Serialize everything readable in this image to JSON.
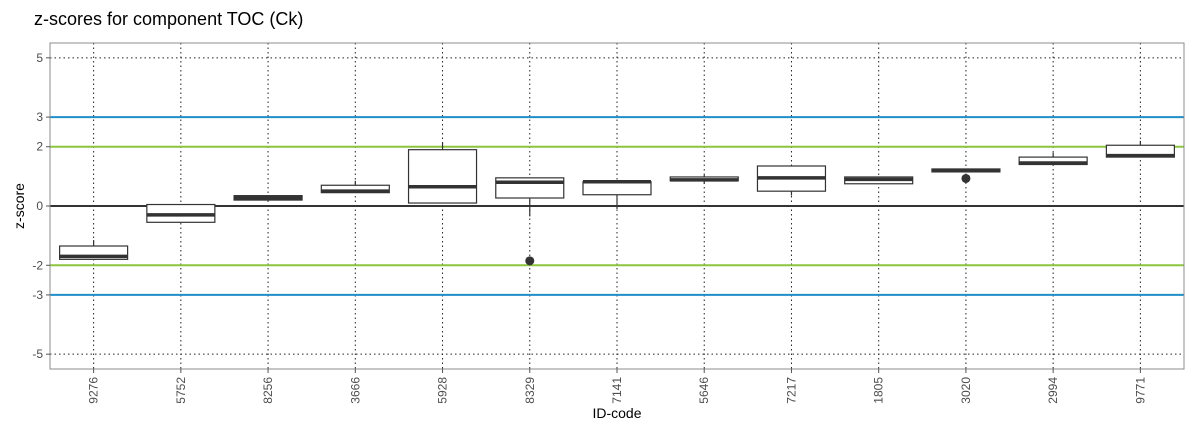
{
  "chart_data": {
    "type": "box",
    "title": "z-scores for component TOC (Ck)",
    "xlabel": "ID-code",
    "ylabel": "z-score",
    "ylim": [
      -5.5,
      5.5
    ],
    "y_ticks": [
      5,
      3,
      2,
      0,
      -2,
      -3,
      -5
    ],
    "y_tick_labels": [
      "5",
      "3",
      "2",
      "0",
      "-2",
      "-3",
      "-5"
    ],
    "grid": true,
    "reference_lines": [
      {
        "y": 3,
        "color": "#1f8fc8"
      },
      {
        "y": -3,
        "color": "#1f8fc8"
      },
      {
        "y": 2,
        "color": "#8cc63f"
      },
      {
        "y": -2,
        "color": "#8cc63f"
      },
      {
        "y": 0,
        "color": "#333333"
      }
    ],
    "categories": [
      "9276",
      "5752",
      "8256",
      "3666",
      "5928",
      "8329",
      "7141",
      "5646",
      "7217",
      "1805",
      "3020",
      "2994",
      "9771"
    ],
    "boxes": [
      {
        "whisker_low": -1.8,
        "q1": -1.8,
        "median": -1.7,
        "q3": -1.35,
        "whisker_high": -1.15,
        "outliers": []
      },
      {
        "whisker_low": -0.55,
        "q1": -0.55,
        "median": -0.3,
        "q3": 0.05,
        "whisker_high": 0.05,
        "outliers": []
      },
      {
        "whisker_low": 0.2,
        "q1": 0.2,
        "median": 0.28,
        "q3": 0.35,
        "whisker_high": 0.35,
        "outliers": []
      },
      {
        "whisker_low": 0.45,
        "q1": 0.45,
        "median": 0.5,
        "q3": 0.7,
        "whisker_high": 0.85,
        "outliers": []
      },
      {
        "whisker_low": 0.1,
        "q1": 0.1,
        "median": 0.65,
        "q3": 1.9,
        "whisker_high": 2.15,
        "outliers": []
      },
      {
        "whisker_low": -0.35,
        "q1": 0.27,
        "median": 0.8,
        "q3": 0.95,
        "whisker_high": 0.95,
        "outliers": [
          -1.85
        ]
      },
      {
        "whisker_low": -0.1,
        "q1": 0.38,
        "median": 0.82,
        "q3": 0.82,
        "whisker_high": 0.85,
        "outliers": []
      },
      {
        "whisker_low": 0.75,
        "q1": 0.85,
        "median": 0.88,
        "q3": 0.98,
        "whisker_high": 1.05,
        "outliers": []
      },
      {
        "whisker_low": 0.35,
        "q1": 0.5,
        "median": 0.95,
        "q3": 1.35,
        "whisker_high": 1.35,
        "outliers": []
      },
      {
        "whisker_low": 0.75,
        "q1": 0.75,
        "median": 0.9,
        "q3": 0.98,
        "whisker_high": 0.98,
        "outliers": []
      },
      {
        "whisker_low": 1.15,
        "q1": 1.15,
        "median": 1.2,
        "q3": 1.25,
        "whisker_high": 1.25,
        "outliers": [
          0.93
        ]
      },
      {
        "whisker_low": 1.4,
        "q1": 1.4,
        "median": 1.45,
        "q3": 1.65,
        "whisker_high": 1.8,
        "outliers": []
      },
      {
        "whisker_low": 1.65,
        "q1": 1.65,
        "median": 1.7,
        "q3": 2.05,
        "whisker_high": 2.2,
        "outliers": []
      }
    ]
  }
}
